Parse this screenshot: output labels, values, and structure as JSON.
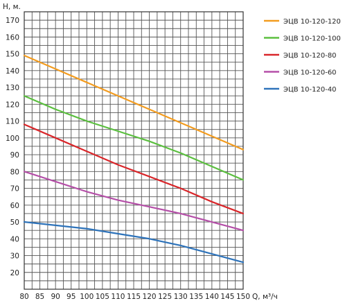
{
  "chart_data": {
    "type": "line",
    "title": "",
    "xlabel": "Q, м³/ч",
    "ylabel": "Н, м.",
    "xlim": [
      80,
      150
    ],
    "ylim": [
      10,
      175
    ],
    "x_ticks": [
      80,
      85,
      90,
      95,
      100,
      105,
      110,
      115,
      120,
      125,
      130,
      135,
      140,
      145,
      150
    ],
    "y_ticks": [
      20,
      30,
      40,
      50,
      60,
      70,
      80,
      90,
      100,
      110,
      120,
      130,
      140,
      150,
      160,
      170
    ],
    "grid": true,
    "legend_position": "right",
    "series": [
      {
        "name": "ЭЦВ 10-120-120",
        "color": "#F39C1F",
        "x": [
          80,
          90,
          100,
          110,
          120,
          130,
          140,
          150
        ],
        "y": [
          149,
          141,
          133,
          125,
          117,
          109,
          101,
          93
        ]
      },
      {
        "name": "ЭЦВ 10-120-100",
        "color": "#5BBF3F",
        "x": [
          80,
          90,
          100,
          110,
          120,
          130,
          140,
          150
        ],
        "y": [
          125,
          117,
          110,
          104,
          98,
          91,
          83,
          75
        ]
      },
      {
        "name": "ЭЦВ 10-120-80",
        "color": "#D9262A",
        "x": [
          80,
          90,
          100,
          110,
          120,
          130,
          140,
          150
        ],
        "y": [
          108,
          100,
          92,
          84,
          77,
          70,
          62,
          55
        ]
      },
      {
        "name": "ЭЦВ 10-120-60",
        "color": "#B54FA8",
        "x": [
          80,
          90,
          100,
          110,
          120,
          130,
          140,
          150
        ],
        "y": [
          80,
          74,
          68,
          63,
          59,
          55,
          50,
          45
        ]
      },
      {
        "name": "ЭЦВ 10-120-40",
        "color": "#2E73BA",
        "x": [
          80,
          90,
          100,
          110,
          120,
          130,
          140,
          150
        ],
        "y": [
          50,
          48,
          46,
          43,
          40,
          36,
          31,
          26
        ]
      }
    ]
  }
}
